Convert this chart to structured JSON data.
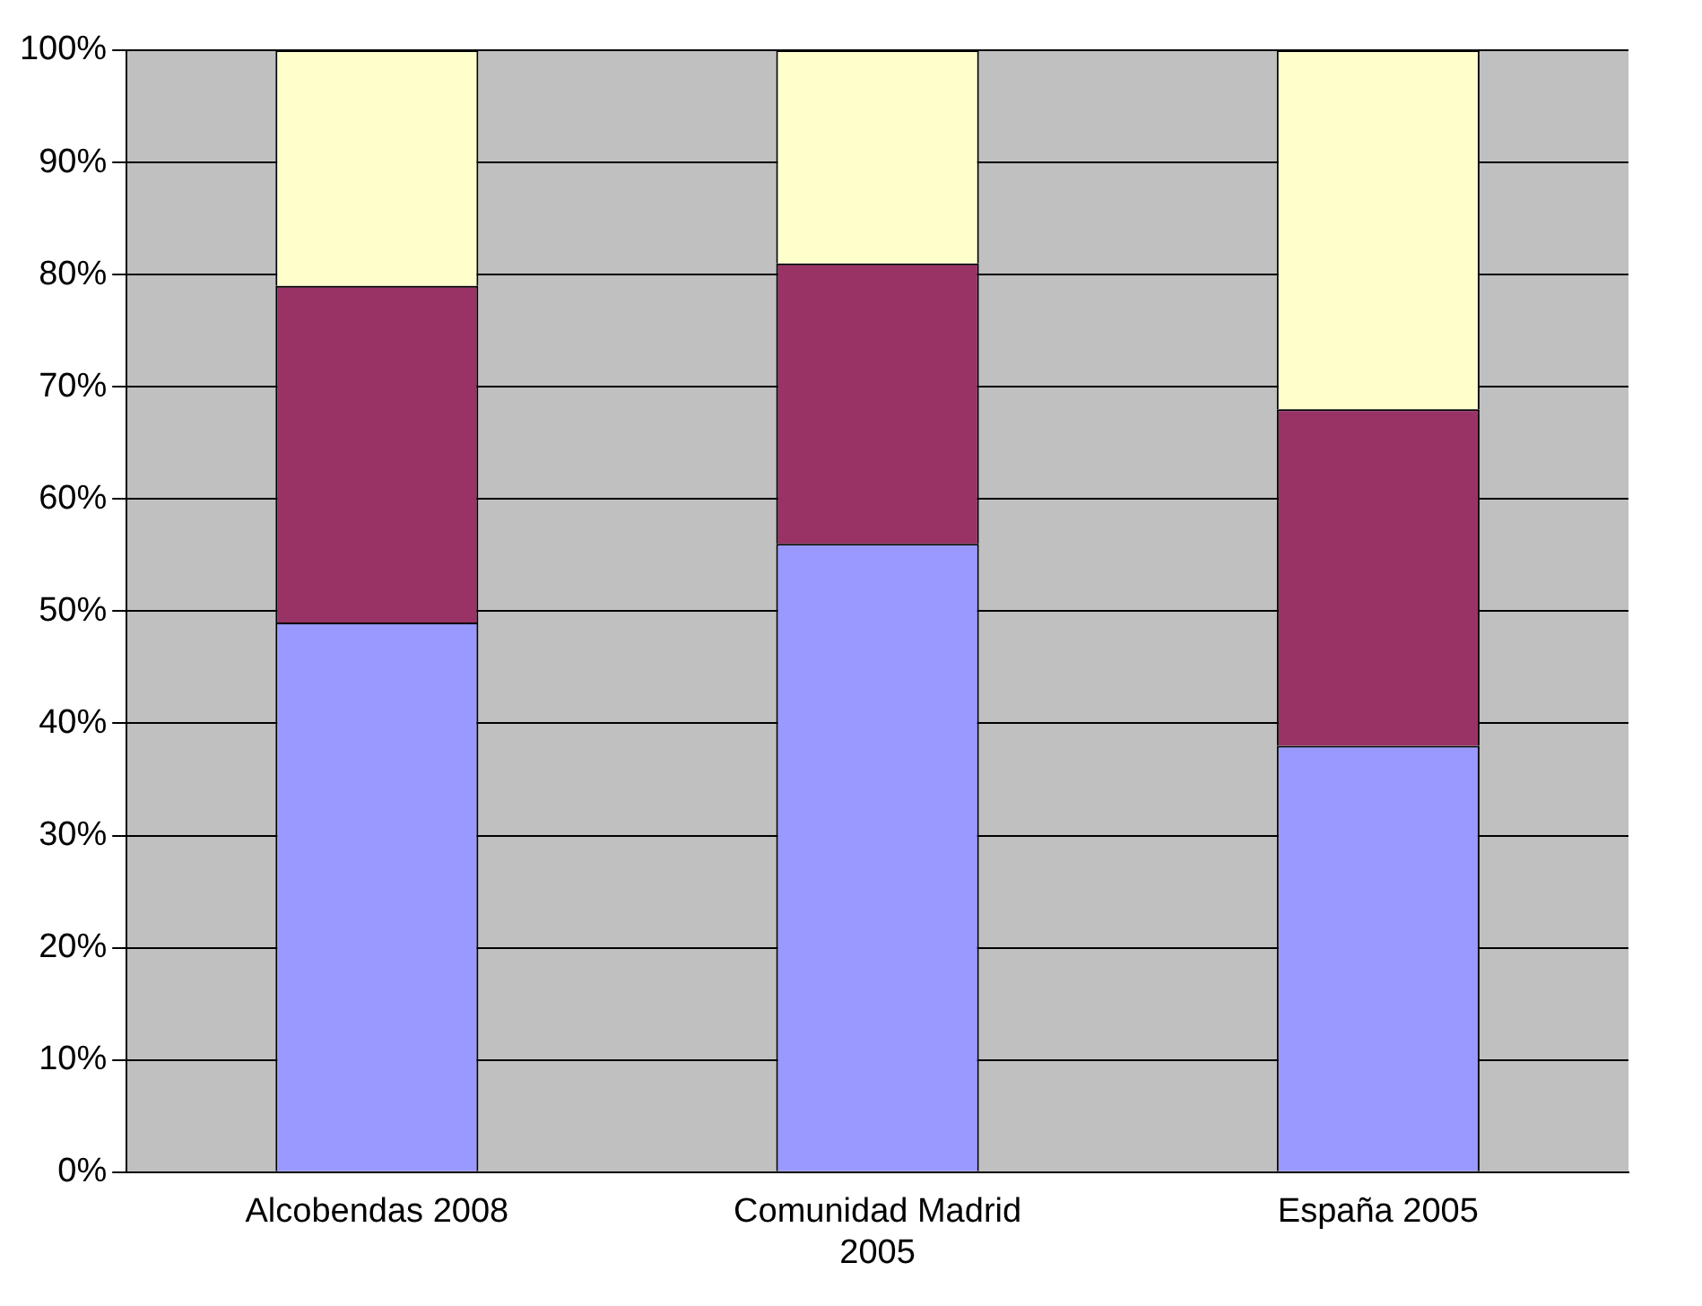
{
  "chart_data": {
    "type": "bar",
    "stacked": true,
    "categories": [
      "Alcobendas 2008",
      "Comunidad Madrid 2005",
      "España 2005"
    ],
    "series": [
      {
        "color": "#9999ff",
        "values": [
          49,
          56,
          38
        ]
      },
      {
        "color": "#993366",
        "values": [
          30,
          25,
          30
        ]
      },
      {
        "color": "#ffffcc",
        "values": [
          21,
          19,
          32
        ]
      }
    ],
    "ylim": [
      0,
      100
    ],
    "yticks": [
      {
        "value": 0,
        "label": "0%"
      },
      {
        "value": 10,
        "label": "10%"
      },
      {
        "value": 20,
        "label": "20%"
      },
      {
        "value": 30,
        "label": "30%"
      },
      {
        "value": 40,
        "label": "40%"
      },
      {
        "value": 50,
        "label": "50%"
      },
      {
        "value": 60,
        "label": "60%"
      },
      {
        "value": 70,
        "label": "70%"
      },
      {
        "value": 80,
        "label": "80%"
      },
      {
        "value": 90,
        "label": "90%"
      },
      {
        "value": 100,
        "label": "100%"
      }
    ],
    "grid": "y",
    "legend": false
  }
}
